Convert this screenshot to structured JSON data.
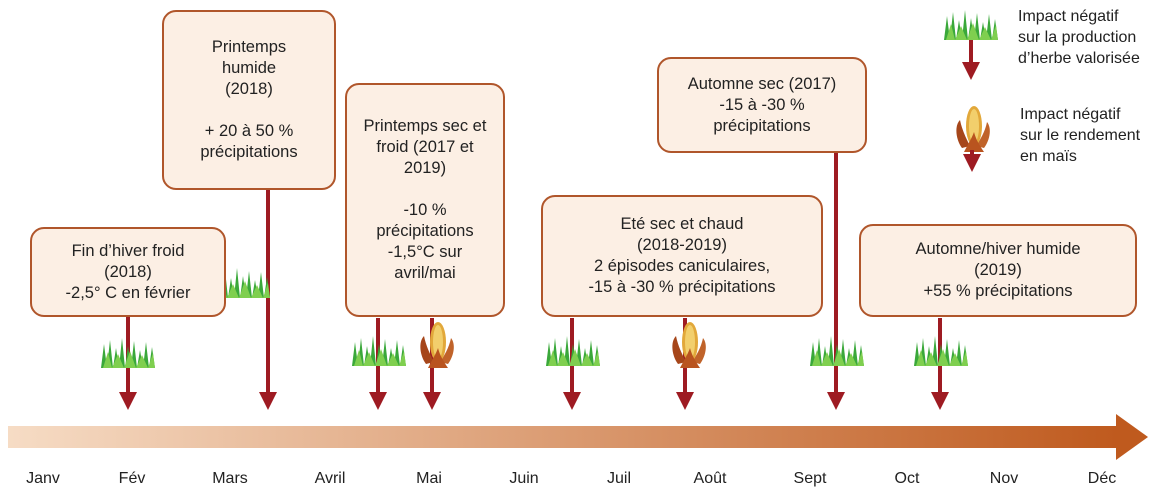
{
  "boxes": {
    "winter": {
      "lines": [
        "Fin d’hiver froid",
        "(2018)",
        "-2,5° C en février"
      ]
    },
    "spring_wet": {
      "lines": [
        "Printemps",
        "humide",
        "(2018)",
        "",
        "+ 20 à 50 %",
        "précipitations"
      ]
    },
    "spring_dry": {
      "lines": [
        "Printemps sec et",
        "froid (2017 et",
        "2019)",
        "",
        "-10 %",
        "précipitations",
        "-1,5°C sur",
        "avril/mai"
      ]
    },
    "summer": {
      "lines": [
        "Eté sec et chaud",
        "(2018-2019)",
        "2 épisodes caniculaires,",
        "-15 à -30 % précipitations"
      ]
    },
    "autumn_dry": {
      "lines": [
        "Automne sec (2017)",
        "-15 à -30 %",
        "précipitations"
      ]
    },
    "autumn_wet": {
      "lines": [
        "Automne/hiver humide",
        "(2019)",
        "+55 % précipitations"
      ]
    }
  },
  "legend": {
    "grass": {
      "icon": "grass-icon",
      "lines": [
        "Impact négatif",
        "sur la production",
        "d’herbe valorisée"
      ]
    },
    "maize": {
      "icon": "maize-icon",
      "lines": [
        "Impact négatif",
        "sur le rendement",
        "en maïs"
      ]
    }
  },
  "months": [
    "Janv",
    "Fév",
    "Mars",
    "Avril",
    "Mai",
    "Juin",
    "Juil",
    "Août",
    "Sept",
    "Oct",
    "Nov",
    "Déc"
  ],
  "colors": {
    "arrow": "#9e1b22",
    "box_border": "#b0562b",
    "box_fill": "#fcefe4",
    "timeline_start": "#f6dcc5",
    "timeline_end": "#bf5a1e",
    "grass": "#3aa83a",
    "maize": "#e2a83a"
  }
}
